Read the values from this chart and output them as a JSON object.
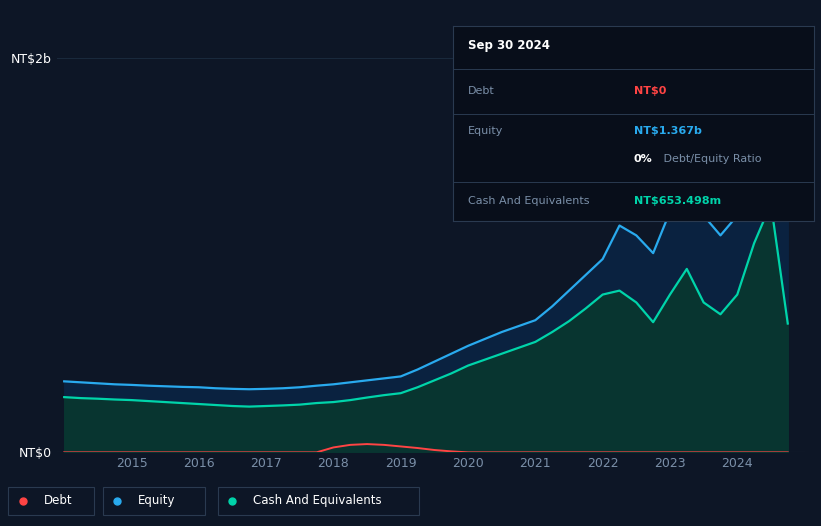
{
  "bg_color": "#0d1626",
  "plot_bg_color": "#0d1626",
  "grid_color": "#1a2a3d",
  "title_box": {
    "date": "Sep 30 2024",
    "debt_label": "Debt",
    "debt_value": "NT$0",
    "debt_color": "#ff4444",
    "equity_label": "Equity",
    "equity_value": "NT$1.367b",
    "equity_color": "#29aaee",
    "ratio_bold": "0%",
    "ratio_rest": " Debt/Equity Ratio",
    "cash_label": "Cash And Equivalents",
    "cash_value": "NT$653.498m",
    "cash_color": "#00d4aa",
    "box_bg": "#080e1a",
    "box_border": "#2a3a50",
    "text_color": "#7a8fa8"
  },
  "ylabel_top": "NT$2b",
  "ylabel_bottom": "NT$0",
  "ylim": [
    0,
    2.0
  ],
  "equity_color": "#29aaee",
  "equity_fill": "#0a2240",
  "cash_color": "#00d4aa",
  "cash_fill": "#083530",
  "debt_color": "#ff4444",
  "years": [
    2014.0,
    2014.25,
    2014.5,
    2014.75,
    2015.0,
    2015.25,
    2015.5,
    2015.75,
    2016.0,
    2016.25,
    2016.5,
    2016.75,
    2017.0,
    2017.25,
    2017.5,
    2017.75,
    2018.0,
    2018.25,
    2018.5,
    2018.75,
    2019.0,
    2019.25,
    2019.5,
    2019.75,
    2020.0,
    2020.25,
    2020.5,
    2020.75,
    2021.0,
    2021.25,
    2021.5,
    2021.75,
    2022.0,
    2022.25,
    2022.5,
    2022.75,
    2023.0,
    2023.25,
    2023.5,
    2023.75,
    2024.0,
    2024.25,
    2024.5,
    2024.75
  ],
  "equity": [
    0.36,
    0.355,
    0.35,
    0.345,
    0.342,
    0.338,
    0.335,
    0.332,
    0.33,
    0.325,
    0.322,
    0.32,
    0.322,
    0.325,
    0.33,
    0.338,
    0.345,
    0.355,
    0.365,
    0.375,
    0.385,
    0.42,
    0.46,
    0.5,
    0.54,
    0.575,
    0.61,
    0.64,
    0.67,
    0.74,
    0.82,
    0.9,
    0.98,
    1.15,
    1.1,
    1.01,
    1.22,
    1.38,
    1.2,
    1.1,
    1.2,
    1.52,
    1.8,
    1.37
  ],
  "cash": [
    0.28,
    0.275,
    0.272,
    0.268,
    0.265,
    0.26,
    0.255,
    0.25,
    0.245,
    0.24,
    0.235,
    0.232,
    0.235,
    0.238,
    0.242,
    0.25,
    0.255,
    0.265,
    0.278,
    0.29,
    0.3,
    0.33,
    0.365,
    0.4,
    0.44,
    0.47,
    0.5,
    0.53,
    0.56,
    0.61,
    0.665,
    0.73,
    0.8,
    0.82,
    0.76,
    0.66,
    0.8,
    0.93,
    0.76,
    0.7,
    0.8,
    1.06,
    1.26,
    0.653
  ],
  "debt": [
    0.0,
    0.0,
    0.0,
    0.0,
    0.0,
    0.0,
    0.0,
    0.0,
    0.0,
    0.0,
    0.0,
    0.0,
    0.0,
    0.0,
    0.0,
    0.0,
    0.025,
    0.038,
    0.042,
    0.038,
    0.03,
    0.022,
    0.012,
    0.005,
    0.0,
    0.0,
    0.0,
    0.0,
    0.0,
    0.0,
    0.0,
    0.0,
    0.0,
    0.0,
    0.0,
    0.0,
    0.0,
    0.0,
    0.0,
    0.0,
    0.0,
    0.0,
    0.0,
    0.0
  ],
  "xtick_years": [
    2015,
    2016,
    2017,
    2018,
    2019,
    2020,
    2021,
    2022,
    2023,
    2024
  ],
  "legend_items": [
    {
      "label": "Debt",
      "color": "#ff4444"
    },
    {
      "label": "Equity",
      "color": "#29aaee"
    },
    {
      "label": "Cash And Equivalents",
      "color": "#00d4aa"
    }
  ]
}
